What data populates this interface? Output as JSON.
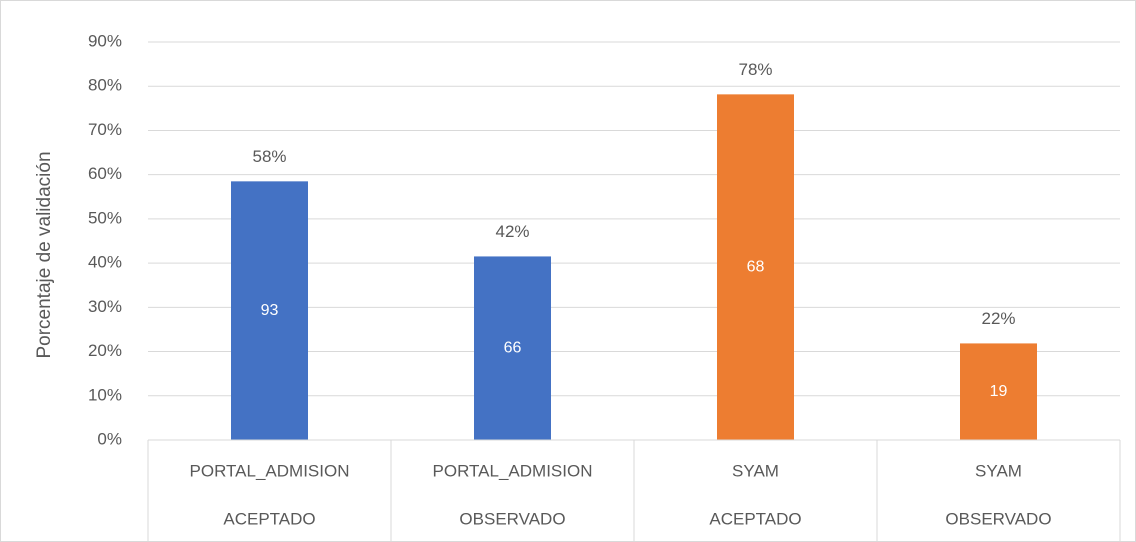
{
  "chart_data": {
    "type": "bar",
    "y_axis_label": "Porcentaje de validación",
    "categories": [
      [
        "PORTAL_ADMISION",
        "ACEPTADO"
      ],
      [
        "PORTAL_ADMISION",
        "OBSERVADO"
      ],
      [
        "SYAM",
        "ACEPTADO"
      ],
      [
        "SYAM",
        "OBSERVADO"
      ]
    ],
    "values": [
      58.49,
      41.51,
      78.16,
      21.84
    ],
    "value_labels": [
      "58%",
      "42%",
      "78%",
      "22%"
    ],
    "counts": [
      93,
      66,
      68,
      19
    ],
    "colors": [
      "#4472c4",
      "#4472c4",
      "#ed7d31",
      "#ed7d31"
    ],
    "ylim": [
      0,
      90
    ],
    "yticks": [
      {
        "value": 0,
        "label": "0%"
      },
      {
        "value": 10,
        "label": "10%"
      },
      {
        "value": 20,
        "label": "20%"
      },
      {
        "value": 30,
        "label": "30%"
      },
      {
        "value": 40,
        "label": "40%"
      },
      {
        "value": 50,
        "label": "50%"
      },
      {
        "value": 60,
        "label": "60%"
      },
      {
        "value": 70,
        "label": "70%"
      },
      {
        "value": 80,
        "label": "80%"
      },
      {
        "value": 90,
        "label": "90%"
      }
    ],
    "grid": true
  }
}
